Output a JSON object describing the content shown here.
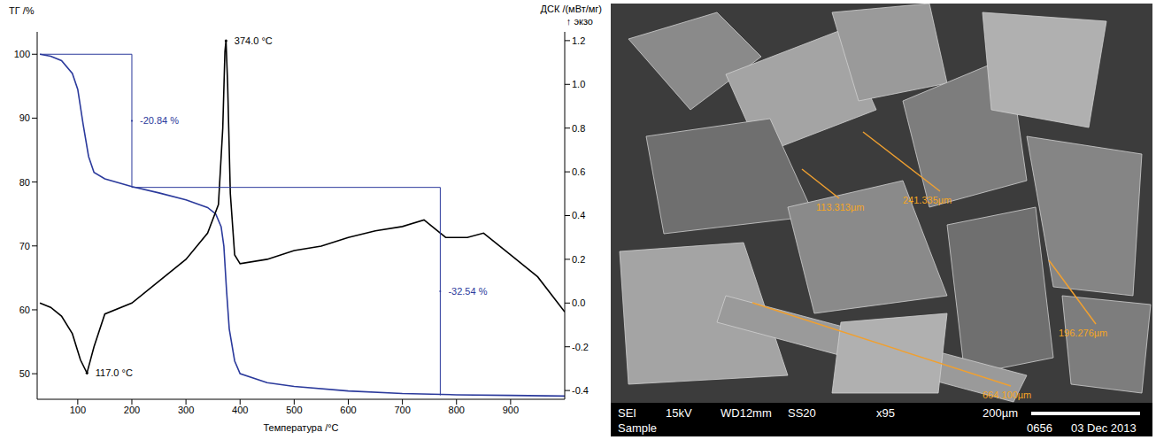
{
  "chart_data": {
    "type": "line",
    "x_label": "Температура /°C",
    "y_label": "ТГ /%",
    "y2_label": "ДСК /(мВт/мг)",
    "y2_note": "↑ экзо",
    "xlim": [
      25,
      1000
    ],
    "xticks": [
      100,
      200,
      300,
      400,
      500,
      600,
      700,
      800,
      900
    ],
    "ylim": [
      46,
      103.5
    ],
    "yticks": [
      50,
      60,
      70,
      80,
      90,
      100
    ],
    "y2lim": [
      -0.44,
      1.24
    ],
    "y2ticks": [
      -0.4,
      -0.2,
      {
        "value": 0,
        "label": "0.0"
      },
      0.2,
      0.4,
      0.6,
      0.8,
      {
        "value": 1,
        "label": "1.0"
      },
      1.2
    ],
    "grid": false,
    "series": [
      {
        "color": "#2b3a9c",
        "axis": "y",
        "x": [
          30,
          50,
          70,
          90,
          100,
          110,
          120,
          130,
          150,
          200,
          250,
          300,
          340,
          355,
          365,
          370,
          375,
          380,
          390,
          400,
          450,
          500,
          600,
          700,
          800,
          900,
          1000
        ],
        "values": [
          100,
          99.7,
          99,
          97,
          94.5,
          89,
          84,
          81.5,
          80.5,
          79.3,
          78.3,
          77.2,
          76,
          75,
          73,
          70,
          63,
          57,
          52,
          50,
          48.6,
          48,
          47.3,
          46.9,
          46.7,
          46.6,
          46.5
        ]
      },
      {
        "color": "#000000",
        "axis": "y2",
        "x": [
          30,
          50,
          70,
          90,
          105,
          117,
          130,
          150,
          200,
          250,
          300,
          340,
          360,
          368,
          372,
          374,
          377,
          382,
          390,
          400,
          450,
          500,
          550,
          600,
          650,
          700,
          740,
          780,
          820,
          850,
          900,
          950,
          1000
        ],
        "values": [
          0,
          -0.02,
          -0.06,
          -0.14,
          -0.26,
          -0.32,
          -0.2,
          -0.05,
          0.0,
          0.1,
          0.2,
          0.32,
          0.45,
          0.8,
          1.15,
          1.2,
          1.0,
          0.5,
          0.22,
          0.18,
          0.2,
          0.24,
          0.26,
          0.3,
          0.33,
          0.35,
          0.38,
          0.3,
          0.3,
          0.32,
          0.22,
          0.12,
          -0.04
        ]
      }
    ],
    "lines": [
      {
        "x": [
          30,
          200
        ],
        "y": [
          100,
          100
        ]
      },
      {
        "x": [
          200,
          770
        ],
        "y": [
          79.16,
          79.16
        ]
      }
    ],
    "brackets": [
      {
        "text": "-20.84 %",
        "x": 200,
        "y": [
          100,
          79.16
        ]
      },
      {
        "text": "-32.54 %",
        "x": 770,
        "y": [
          79.16,
          46.62
        ]
      }
    ],
    "peaks": [
      {
        "text": "374.0 °C",
        "x": 374,
        "y": 1.2
      },
      {
        "text": "117.0 °C",
        "x": 117,
        "y": -0.32
      }
    ]
  },
  "image": {
    "measurements": [
      "113.313µm",
      "241.335µm",
      "196.276µm",
      "664.100µm"
    ],
    "footer": [
      [
        "SEI",
        "15kV",
        "WD12mm",
        "SS20",
        "x95",
        "200µm"
      ],
      [
        "Sample",
        "0656",
        "03 Dec 2013"
      ]
    ]
  }
}
